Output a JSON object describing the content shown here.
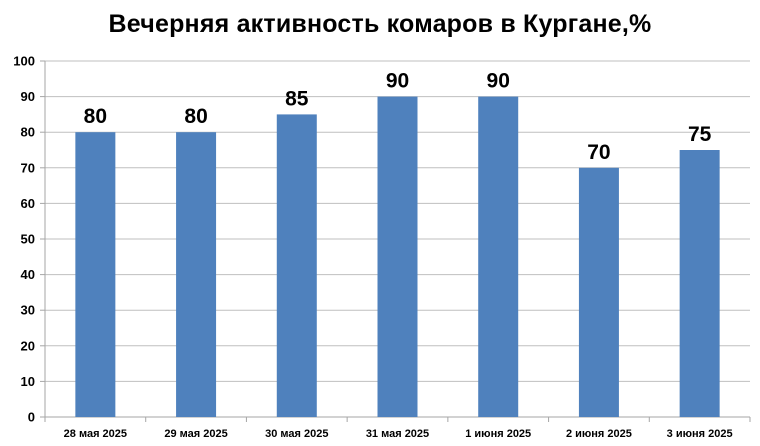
{
  "chart_data": {
    "type": "bar",
    "title": "Вечерняя активность комаров в Кургане,%",
    "categories": [
      "28 мая 2025",
      "29 мая 2025",
      "30 мая 2025",
      "31 мая 2025",
      "1 июня 2025",
      "2 июня 2025",
      "3 июня 2025"
    ],
    "values": [
      80,
      80,
      85,
      90,
      90,
      70,
      75
    ],
    "ylim": [
      0,
      100
    ],
    "yticks": [
      0,
      10,
      20,
      30,
      40,
      50,
      60,
      70,
      80,
      90,
      100
    ],
    "grid": true,
    "data_labels": true,
    "colors": {
      "bar": "#4f81bd",
      "grid": "#bfbfbf",
      "axis": "#a6a6a6"
    }
  }
}
